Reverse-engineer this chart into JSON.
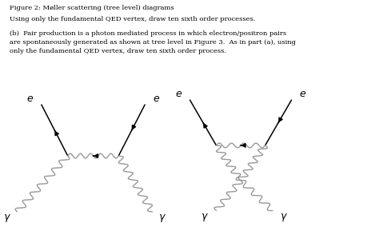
{
  "title_line1": "Figure 2: Møller scattering (tree level) diagrams",
  "title_line2": "Using only the fundamental QED vertex, draw ten sixth order processes.",
  "body_text": "(b)  Pair production is a photon mediated process in which electron/positron pairs\nare spontaneously generated as shown at tree level in Figure 3.  As in part (a), using\nonly the fundamental QED vertex, draw ten sixth order process.",
  "background": "#ffffff",
  "line_color": "#000000",
  "wavy_color": "#999999",
  "label_color": "#000000",
  "fig_width": 4.74,
  "fig_height": 2.94,
  "dpi": 100
}
